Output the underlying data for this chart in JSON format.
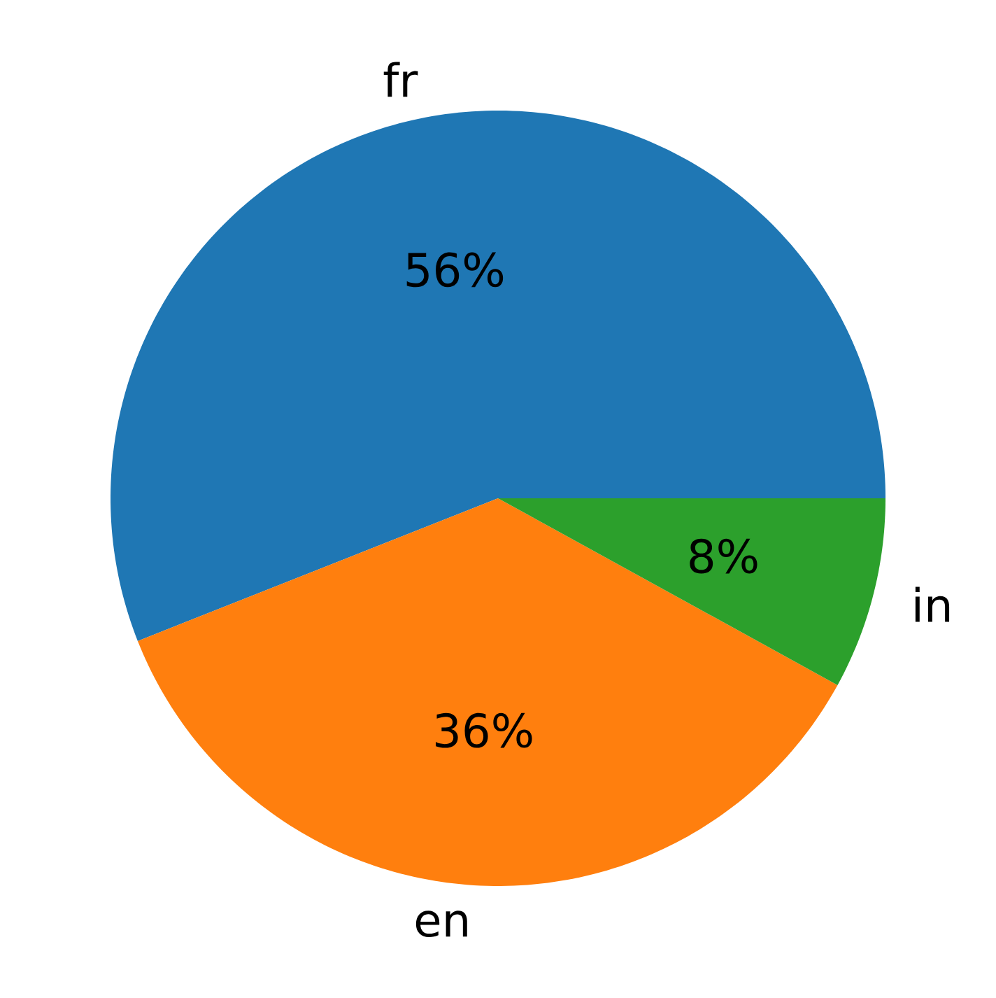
{
  "chart_data": {
    "type": "pie",
    "categories": [
      "fr",
      "en",
      "in"
    ],
    "values": [
      56,
      36,
      8
    ],
    "colors": [
      "#1f77b4",
      "#ff7f0e",
      "#2ca02c"
    ],
    "value_labels": [
      "56%",
      "36%",
      "8%"
    ]
  }
}
